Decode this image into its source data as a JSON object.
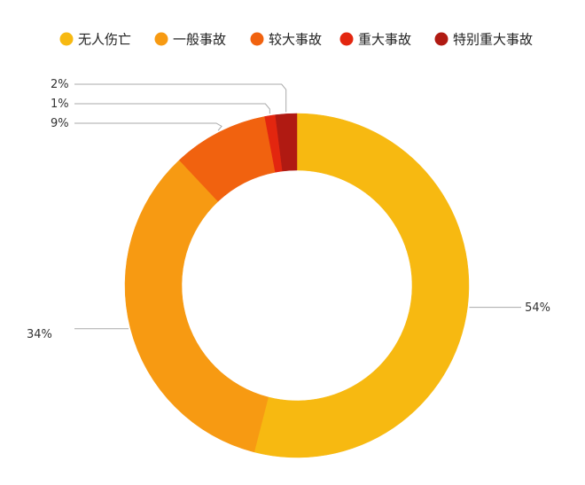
{
  "chart_data": {
    "type": "pie",
    "variant": "donut",
    "categories": [
      "无人伤亡",
      "一般事故",
      "较大事故",
      "重大事故",
      "特别重大事故"
    ],
    "values": [
      54,
      34,
      9,
      1,
      2
    ],
    "labels": [
      "54%",
      "34%",
      "9%",
      "1%",
      "2%"
    ],
    "colors": [
      "#f7b911",
      "#f79a12",
      "#f1620f",
      "#e3260f",
      "#b01a12"
    ],
    "legend": {
      "position": "top"
    }
  }
}
